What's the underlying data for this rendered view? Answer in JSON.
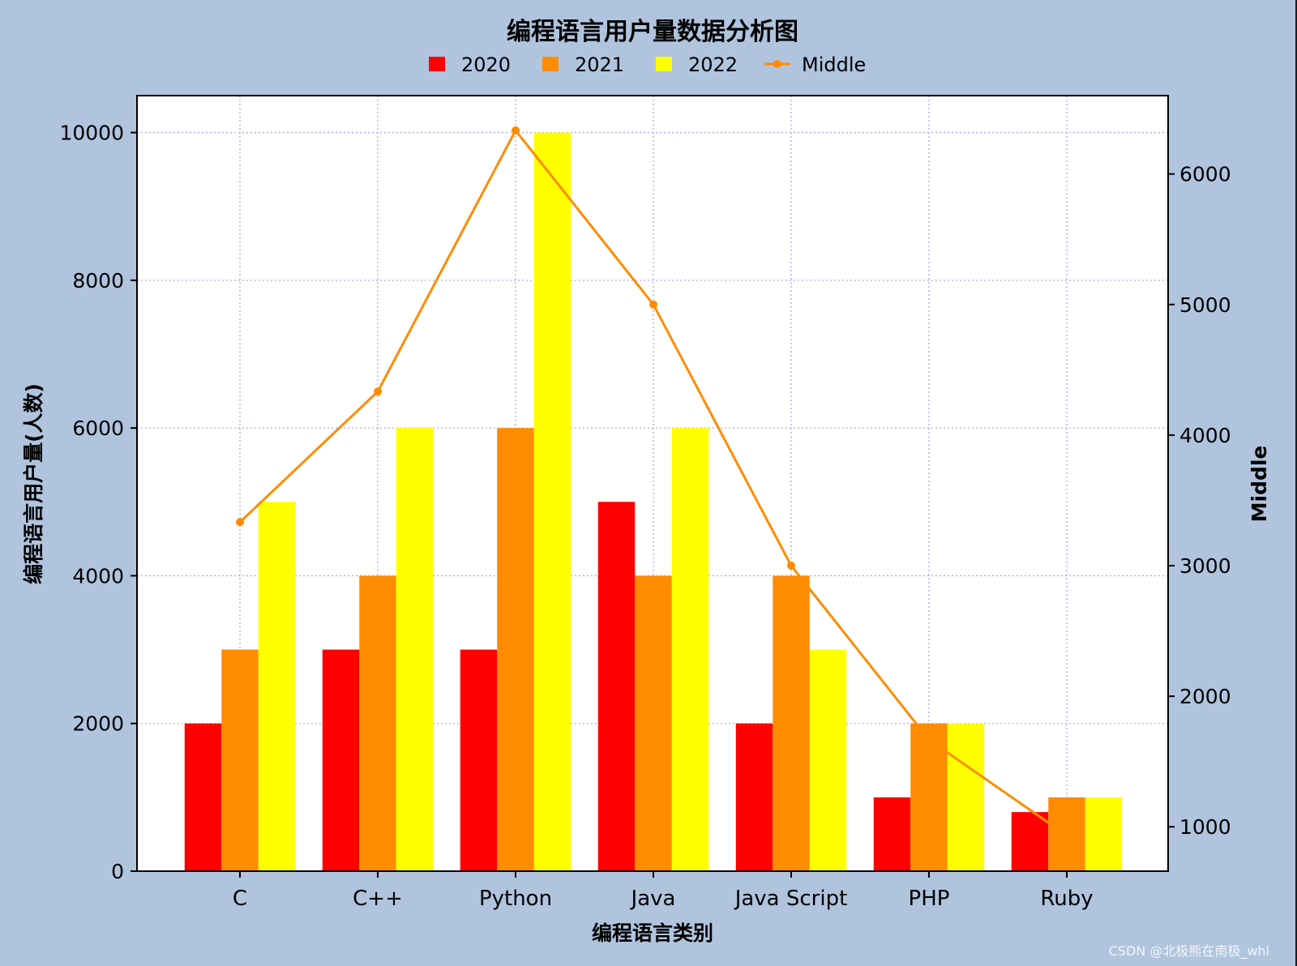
{
  "chart_data": {
    "type": "bar",
    "title": "编程语言用户量数据分析图",
    "xlabel": "编程语言类别",
    "ylabel": "编程语言用户量(人数)",
    "y2label": "Middle",
    "categories": [
      "C",
      "C++",
      "Python",
      "Java",
      "Java Script",
      "PHP",
      "Ruby"
    ],
    "series": [
      {
        "name": "2020",
        "type": "bar",
        "color": "#ff0000",
        "values": [
          2000,
          3000,
          3000,
          5000,
          2000,
          1000,
          800
        ]
      },
      {
        "name": "2021",
        "type": "bar",
        "color": "#ff8c00",
        "values": [
          3000,
          4000,
          6000,
          4000,
          4000,
          2000,
          1000
        ]
      },
      {
        "name": "2022",
        "type": "bar",
        "color": "#ffff00",
        "values": [
          5000,
          6000,
          10000,
          6000,
          3000,
          2000,
          1000
        ]
      },
      {
        "name": "Middle",
        "type": "line",
        "axis": "right",
        "color": "#ff8c00",
        "values": [
          3333.33,
          4333.33,
          6333.33,
          5000,
          3000,
          1666.67,
          933.33
        ]
      }
    ],
    "ylim": [
      0,
      10500
    ],
    "yticks": [
      0,
      2000,
      4000,
      6000,
      8000,
      10000
    ],
    "y2lim": [
      660,
      6600
    ],
    "y2ticks": [
      1000,
      2000,
      3000,
      4000,
      5000,
      6000
    ],
    "grid": true,
    "legend_position": "top-center"
  },
  "watermark": "CSDN @北极熊在南极_whl"
}
